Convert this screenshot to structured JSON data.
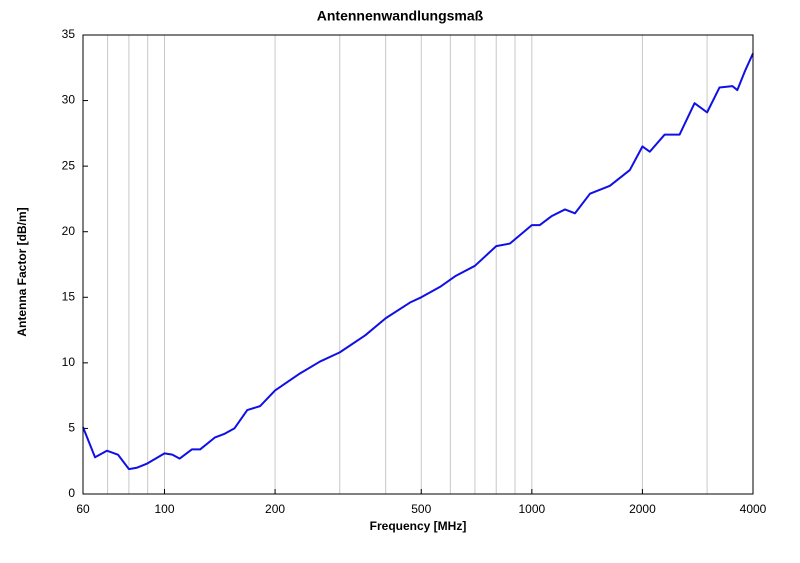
{
  "chart_data": {
    "type": "line",
    "title": "Antennenwandlungsmaß",
    "x_label": "Frequency [MHz]",
    "y_label": "Antenna Factor [dB/m]",
    "x_scale": "log",
    "grid": true,
    "xlim": [
      60,
      4000
    ],
    "ylim": [
      0,
      35
    ],
    "xticks": [
      60,
      100,
      200,
      500,
      1000,
      2000,
      4000
    ],
    "x_minor_grid": [
      70,
      80,
      90,
      300,
      400,
      600,
      700,
      800,
      900,
      3000
    ],
    "yticks": [
      0,
      5,
      10,
      15,
      20,
      25,
      30,
      35
    ],
    "x": [
      60,
      64.7,
      69.7,
      74.7,
      80,
      84,
      89.4,
      100,
      105,
      110,
      118.7,
      125,
      137,
      146,
      155,
      168,
      182,
      200,
      234,
      265,
      300,
      352,
      400,
      466,
      500,
      563,
      618,
      700,
      800,
      872,
      1000,
      1050,
      1134,
      1231,
      1310,
      1440,
      1631,
      1848,
      2000,
      2094,
      2298,
      2524,
      2773,
      3000,
      3243,
      3517,
      3625,
      3810,
      4000
    ],
    "series": [
      {
        "name": "Antenna Factor",
        "color": "#1010e6",
        "values": [
          5.1,
          2.8,
          3.3,
          3.0,
          1.9,
          2.0,
          2.3,
          3.1,
          3.0,
          2.7,
          3.4,
          3.4,
          4.3,
          4.6,
          5.0,
          6.4,
          6.7,
          7.9,
          9.2,
          10.1,
          10.8,
          12.1,
          13.4,
          14.6,
          15.0,
          15.8,
          16.6,
          17.4,
          18.9,
          19.1,
          20.5,
          20.5,
          21.2,
          21.7,
          21.4,
          22.9,
          23.5,
          24.7,
          26.5,
          26.1,
          27.4,
          27.4,
          29.8,
          29.1,
          31.0,
          31.1,
          30.8,
          32.3,
          33.6
        ]
      }
    ]
  }
}
